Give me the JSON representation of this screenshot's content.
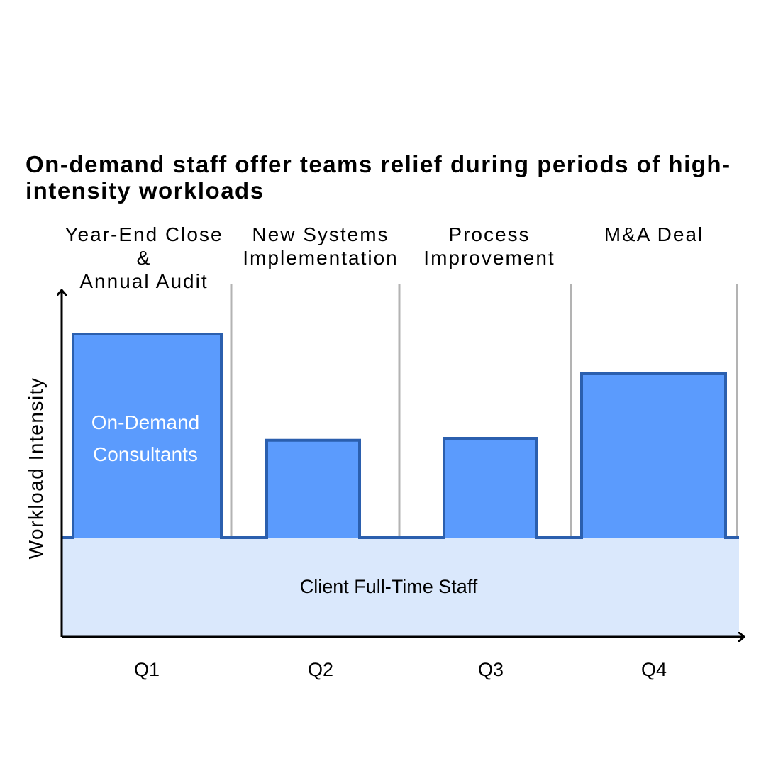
{
  "chart_data": {
    "type": "bar",
    "title_lines": [
      "On-demand staff offer teams relief during periods of high-",
      "intensity workloads"
    ],
    "ylabel": "Workload Intensity",
    "xlabel": "",
    "categories": [
      "Q1",
      "Q2",
      "Q3",
      "Q4"
    ],
    "phases": [
      {
        "lines": [
          "Year-End Close",
          "&",
          "Annual Audit"
        ]
      },
      {
        "lines": [
          "New Systems",
          "Implementation"
        ]
      },
      {
        "lines": [
          "Process",
          "Improvement"
        ]
      },
      {
        "lines": [
          "M&A Deal"
        ]
      }
    ],
    "baseline": {
      "name": "Client Full-Time Staff",
      "value": 1.0
    },
    "series": [
      {
        "name": "On-Demand Consultants",
        "label_lines": [
          "On-Demand",
          "Consultants"
        ],
        "values": [
          2.05,
          0.98,
          1.0,
          1.65
        ]
      }
    ],
    "ylim": [
      0,
      3.2
    ],
    "grid": false,
    "colors": {
      "baseline_fill": "#dae8fc",
      "bar_fill": "#5b9bfd",
      "bar_stroke": "#2b5fae",
      "divider": "#b3b3b3",
      "axis": "#000000"
    }
  }
}
